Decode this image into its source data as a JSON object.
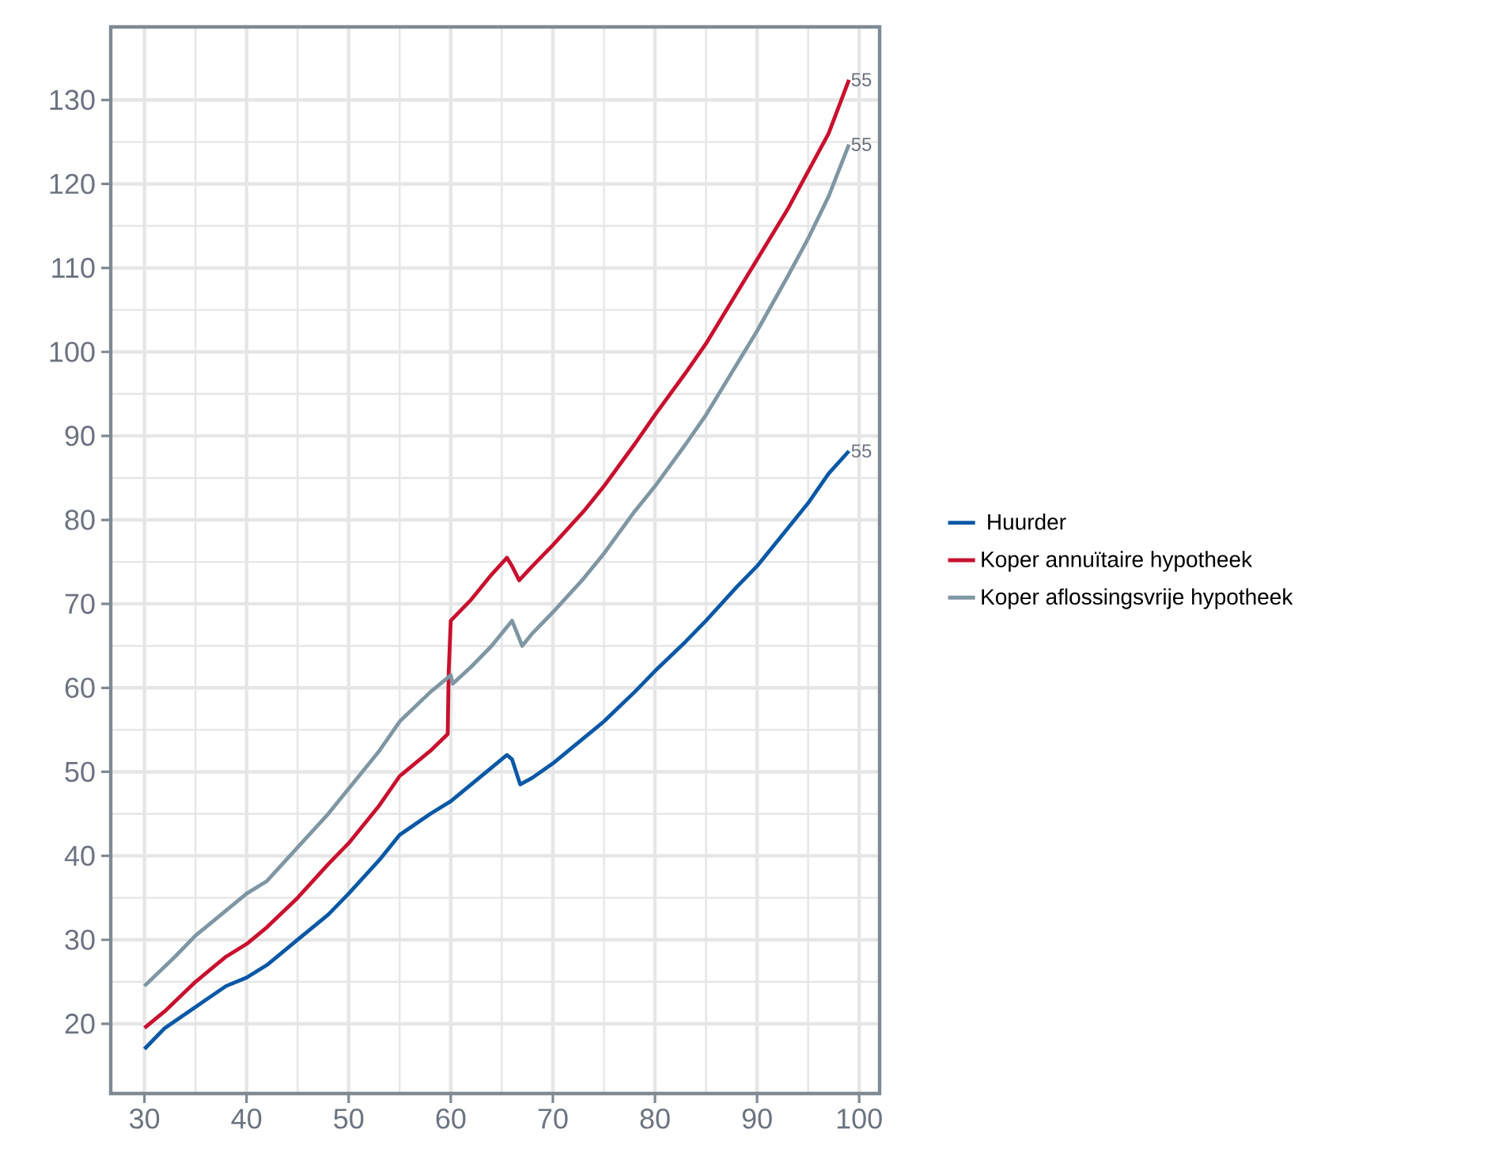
{
  "chart_data": {
    "type": "line",
    "xlim": [
      26.7,
      102
    ],
    "ylim": [
      11.7,
      138.7
    ],
    "xticks": [
      30,
      40,
      50,
      60,
      70,
      80,
      90,
      100
    ],
    "yticks": [
      20,
      30,
      40,
      50,
      60,
      70,
      80,
      90,
      100,
      110,
      120,
      130
    ],
    "grid": true,
    "legend": "right",
    "marker": "none",
    "line_style": "solid",
    "series": [
      {
        "name": " Huurder",
        "color": "#0a58a6",
        "x": [
          30,
          32,
          35,
          38,
          40,
          42,
          45,
          48,
          50,
          53,
          55,
          58,
          60,
          62,
          64,
          65.5,
          66,
          66.8,
          68,
          70,
          72,
          75,
          78,
          80,
          83,
          85,
          88,
          90,
          93,
          95,
          97,
          99
        ],
        "values": [
          17,
          19.5,
          22,
          24.5,
          25.5,
          27,
          30,
          33,
          35.5,
          39.5,
          42.5,
          45,
          46.5,
          48.5,
          50.5,
          52,
          51.5,
          48.5,
          49.3,
          51,
          53,
          56,
          59.5,
          62,
          65.5,
          68,
          72,
          74.5,
          79,
          82,
          85.5,
          88.2
        ]
      },
      {
        "name": "Koper annuïtaire hypotheek",
        "color": "#c8102e",
        "x": [
          30,
          32,
          35,
          38,
          40,
          42,
          45,
          48,
          50,
          53,
          55,
          58,
          59.7,
          59.8,
          60,
          62,
          64,
          65.5,
          66,
          66.7,
          68,
          70,
          73,
          75,
          78,
          80,
          83,
          85,
          88,
          90,
          93,
          95,
          97,
          99
        ],
        "values": [
          19.5,
          21.5,
          25,
          28,
          29.5,
          31.5,
          35,
          39,
          41.5,
          46,
          49.5,
          52.5,
          54.5,
          62,
          68,
          70.5,
          73.5,
          75.5,
          74.5,
          72.8,
          74.5,
          77,
          81,
          84,
          89,
          92.5,
          97.5,
          101,
          107,
          111,
          117,
          121.5,
          126,
          132.4
        ]
      },
      {
        "name": "Koper aflossingsvrije hypotheek",
        "color": "#7f96a3",
        "x": [
          30,
          33,
          35,
          38,
          40,
          42,
          45,
          48,
          50,
          53,
          55,
          58,
          60,
          60.2,
          62,
          64,
          66,
          67,
          68,
          70,
          73,
          75,
          78,
          80,
          83,
          85,
          88,
          90,
          93,
          95,
          97,
          99
        ],
        "values": [
          24.5,
          28,
          30.5,
          33.5,
          35.5,
          37,
          41,
          45,
          48,
          52.5,
          56,
          59.5,
          61.5,
          60.5,
          62.5,
          65,
          68,
          65,
          66.5,
          69,
          73,
          76,
          81,
          84,
          89,
          92.5,
          98.5,
          102.5,
          109,
          113.5,
          118.5,
          124.7
        ]
      }
    ],
    "annotations": [
      "55",
      "55",
      "55"
    ]
  }
}
